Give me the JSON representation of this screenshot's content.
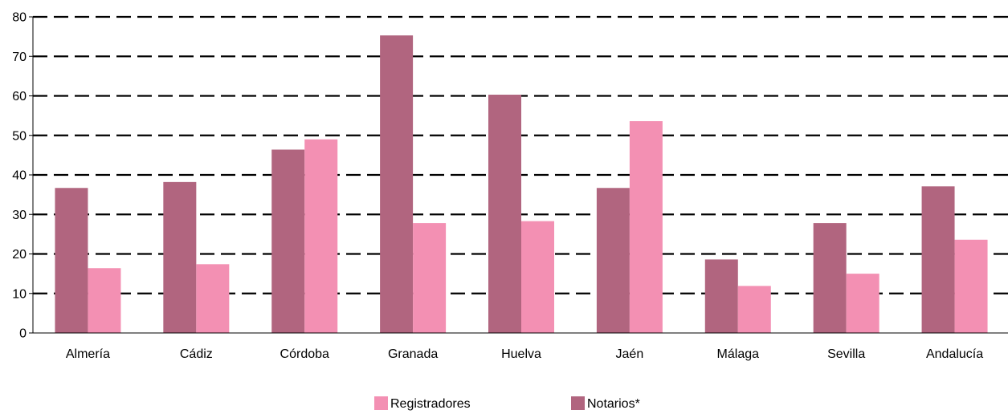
{
  "chart_data": {
    "type": "bar",
    "categories": [
      "Almería",
      "Cádiz",
      "Córdoba",
      "Granada",
      "Huelva",
      "Jaén",
      "Málaga",
      "Sevilla",
      "Andalucía"
    ],
    "series": [
      {
        "name": "Notarios*",
        "color": "#b1657f",
        "values": [
          36.7,
          38.2,
          46.4,
          75.3,
          60.3,
          36.7,
          18.6,
          27.8,
          37.1
        ]
      },
      {
        "name": "Registradores",
        "color": "#f390b3",
        "values": [
          16.4,
          17.4,
          49.0,
          27.8,
          28.3,
          53.6,
          11.9,
          15.0,
          23.6
        ]
      }
    ],
    "yticks": [
      0,
      10,
      20,
      30,
      40,
      50,
      60,
      70,
      80
    ],
    "ylim": [
      0,
      80
    ],
    "grid": "dashed horizontal",
    "legend": {
      "placement": "bottom-center",
      "entries": [
        {
          "label": "Registradores",
          "color": "#f390b3"
        },
        {
          "label": "Notarios*",
          "color": "#b1657f"
        }
      ]
    }
  }
}
